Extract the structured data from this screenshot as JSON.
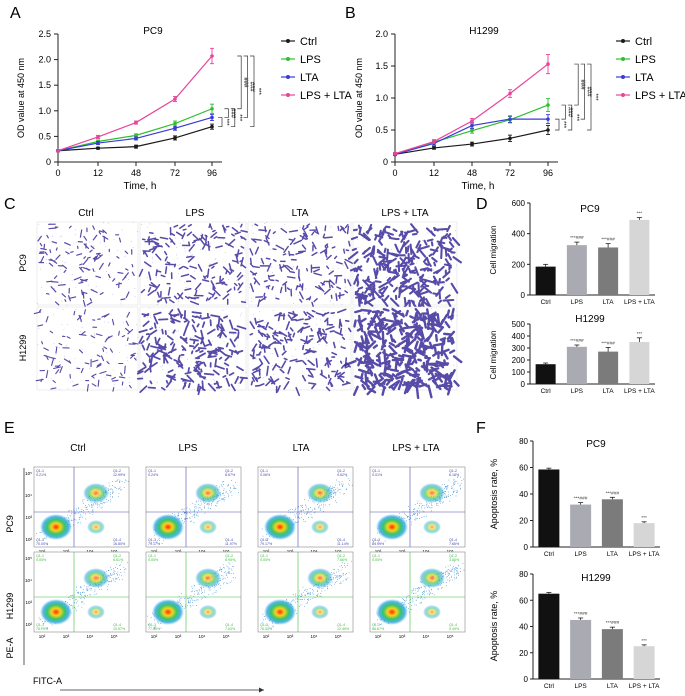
{
  "figure": {
    "panel_labels": [
      "A",
      "B",
      "C",
      "D",
      "E",
      "F"
    ],
    "significance_marks": {
      "triple": "***",
      "hash_triple": "###"
    }
  },
  "chart_data": [
    {
      "panel": "A",
      "type": "line",
      "title": "PC9",
      "xlabel": "Time, h",
      "ylabel": "OD value at 450 nm",
      "x": [
        0,
        12,
        48,
        72,
        96
      ],
      "xtick_labels": [
        "0",
        "12",
        "48",
        "72",
        "96"
      ],
      "ylim": [
        0,
        2.5
      ],
      "yticks": [
        0,
        0.5,
        1.0,
        1.5,
        2.0,
        2.5
      ],
      "ytick_labels": [
        "0",
        "0.5",
        "1.0",
        "1.5",
        "2.0",
        "2.5"
      ],
      "series": [
        {
          "name": "Ctrl",
          "color": "#1a1a1a",
          "values": [
            0.22,
            0.27,
            0.3,
            0.47,
            0.69
          ],
          "errors": [
            0.02,
            0.02,
            0.03,
            0.04,
            0.05
          ]
        },
        {
          "name": "LPS",
          "color": "#2fbf2f",
          "values": [
            0.22,
            0.4,
            0.52,
            0.75,
            1.04
          ],
          "errors": [
            0.02,
            0.03,
            0.03,
            0.05,
            0.09
          ]
        },
        {
          "name": "LTA",
          "color": "#3b3bd6",
          "values": [
            0.22,
            0.37,
            0.46,
            0.66,
            0.87
          ],
          "errors": [
            0.02,
            0.03,
            0.03,
            0.04,
            0.06
          ]
        },
        {
          "name": "LPS + LTA",
          "color": "#e8459a",
          "values": [
            0.22,
            0.49,
            0.77,
            1.23,
            2.07
          ],
          "errors": [
            0.02,
            0.03,
            0.03,
            0.05,
            0.15
          ]
        }
      ],
      "brackets": [
        {
          "label": "***",
          "from": "Ctrl",
          "to": "LTA"
        },
        {
          "label": "###",
          "from": "LTA",
          "to": "LPS"
        },
        {
          "label": "***",
          "from": "Ctrl",
          "to": "LPS"
        },
        {
          "label": "###",
          "from": "LPS",
          "to": "LPS + LTA"
        },
        {
          "label": "###",
          "from": "LTA",
          "to": "LPS + LTA"
        },
        {
          "label": "***",
          "from": "Ctrl",
          "to": "LPS + LTA"
        }
      ]
    },
    {
      "panel": "B",
      "type": "line",
      "title": "H1299",
      "xlabel": "Time, h",
      "ylabel": "OD value at 450 nm",
      "x": [
        0,
        12,
        48,
        72,
        96
      ],
      "xtick_labels": [
        "0",
        "12",
        "48",
        "72",
        "96"
      ],
      "ylim": [
        0,
        2.0
      ],
      "yticks": [
        0,
        0.5,
        1.0,
        1.5,
        2.0
      ],
      "ytick_labels": [
        "0",
        "0.5",
        "1.0",
        "1.5",
        "2.0"
      ],
      "series": [
        {
          "name": "Ctrl",
          "color": "#1a1a1a",
          "values": [
            0.12,
            0.22,
            0.28,
            0.37,
            0.5
          ],
          "errors": [
            0.02,
            0.02,
            0.03,
            0.05,
            0.07
          ]
        },
        {
          "name": "LPS",
          "color": "#2fbf2f",
          "values": [
            0.13,
            0.31,
            0.49,
            0.66,
            0.89
          ],
          "errors": [
            0.02,
            0.03,
            0.04,
            0.05,
            0.1
          ]
        },
        {
          "name": "LTA",
          "color": "#3b3bd6",
          "values": [
            0.12,
            0.29,
            0.57,
            0.67,
            0.67
          ],
          "errors": [
            0.02,
            0.03,
            0.05,
            0.05,
            0.07
          ]
        },
        {
          "name": "LPS + LTA",
          "color": "#e8459a",
          "values": [
            0.13,
            0.32,
            0.64,
            1.07,
            1.53
          ],
          "errors": [
            0.02,
            0.03,
            0.04,
            0.06,
            0.15
          ]
        }
      ],
      "brackets": [
        {
          "label": "***",
          "from": "Ctrl",
          "to": "LTA"
        },
        {
          "label": "###",
          "from": "LTA",
          "to": "LPS"
        },
        {
          "label": "***",
          "from": "Ctrl",
          "to": "LPS"
        },
        {
          "label": "###",
          "from": "LPS",
          "to": "LPS + LTA"
        },
        {
          "label": "###",
          "from": "LTA",
          "to": "LPS + LTA"
        },
        {
          "label": "***",
          "from": "Ctrl",
          "to": "LPS + LTA"
        }
      ]
    },
    {
      "panel": "D1",
      "type": "bar",
      "title": "PC9",
      "ylabel": "Cell migration",
      "categories": [
        "Ctrl",
        "LPS",
        "LTA",
        "LPS + LTA"
      ],
      "values": [
        185,
        325,
        310,
        490
      ],
      "errors": [
        15,
        20,
        25,
        15
      ],
      "colors": [
        "#111111",
        "#a9aab2",
        "#7b7b7b",
        "#d6d6d6"
      ],
      "annotations": [
        "",
        "***###",
        "***###",
        "***"
      ],
      "ylim": [
        0,
        600
      ],
      "yticks": [
        0,
        200,
        400,
        600
      ],
      "ytick_labels": [
        "0",
        "200",
        "400",
        "600"
      ]
    },
    {
      "panel": "D2",
      "type": "bar",
      "title": "H1299",
      "ylabel": "Cell migration",
      "categories": [
        "Ctrl",
        "LPS",
        "LTA",
        "LPS + LTA"
      ],
      "values": [
        165,
        310,
        270,
        350
      ],
      "errors": [
        10,
        15,
        35,
        35
      ],
      "colors": [
        "#111111",
        "#a9aab2",
        "#7b7b7b",
        "#d6d6d6"
      ],
      "annotations": [
        "",
        "***###",
        "***###",
        "***"
      ],
      "ylim": [
        0,
        500
      ],
      "yticks": [
        0,
        100,
        200,
        300,
        400,
        500
      ],
      "ytick_labels": [
        "0",
        "100",
        "200",
        "300",
        "400",
        "500"
      ]
    },
    {
      "panel": "F1",
      "type": "bar",
      "title": "PC9",
      "ylabel": "Apoptosis rate, %",
      "categories": [
        "Ctrl",
        "LPS",
        "LTA",
        "LPS + LTA"
      ],
      "values": [
        58.5,
        32,
        36,
        18
      ],
      "errors": [
        1,
        1.5,
        1.5,
        1
      ],
      "colors": [
        "#111111",
        "#a9aab2",
        "#7b7b7b",
        "#d6d6d6"
      ],
      "annotations": [
        "",
        "***###",
        "***###",
        "***"
      ],
      "ylim": [
        0,
        80
      ],
      "yticks": [
        0,
        20,
        40,
        60,
        80
      ],
      "ytick_labels": [
        "0",
        "20",
        "40",
        "60",
        "80"
      ]
    },
    {
      "panel": "F2",
      "type": "bar",
      "title": "H1299",
      "ylabel": "Apoptosis rate, %",
      "categories": [
        "Ctrl",
        "LPS",
        "LTA",
        "LPS + LTA"
      ],
      "values": [
        65,
        45,
        38,
        25
      ],
      "errors": [
        1,
        1.5,
        1.5,
        1
      ],
      "colors": [
        "#111111",
        "#a9aab2",
        "#7b7b7b",
        "#d6d6d6"
      ],
      "annotations": [
        "",
        "***###",
        "***###",
        "***"
      ],
      "ylim": [
        0,
        80
      ],
      "yticks": [
        0,
        20,
        40,
        60,
        80
      ],
      "ytick_labels": [
        "0",
        "20",
        "40",
        "60",
        "80"
      ]
    }
  ],
  "panel_c": {
    "columns": [
      "Ctrl",
      "LPS",
      "LTA",
      "LPS + LTA"
    ],
    "rows": [
      "PC9",
      "H1299"
    ],
    "density": [
      [
        0.25,
        0.45,
        0.4,
        0.8
      ],
      [
        0.2,
        0.6,
        0.5,
        1.0
      ]
    ],
    "stain_color": "#3a2c9a"
  },
  "panel_e": {
    "columns": [
      "Ctrl",
      "LPS",
      "LTA",
      "LPS + LTA"
    ],
    "rows": [
      "PC9",
      "H1299"
    ],
    "xlabel": "FITC-A",
    "ylabel": "PE-A",
    "tick_labels_x": [
      "10²",
      "10³",
      "10⁴",
      "10⁵"
    ],
    "tick_labels_y": [
      "10²",
      "10³",
      "10⁴",
      "10⁵"
    ],
    "gate_colors": {
      "PC9": "#4a4ab0",
      "H1299": "#3fbf3f"
    },
    "quadrants": [
      [
        {
          "Q1-1": "0.21%",
          "Q1-2": "12.99%",
          "Q1-3": "70.00%",
          "Q1-4": "16.80%"
        },
        {
          "Q1-1": "0.24%",
          "Q1-2": "8.67%",
          "Q1-3": "79.17%",
          "Q1-4": "11.97%"
        },
        {
          "Q1-1": "0.06%",
          "Q1-2": "9.62%",
          "Q1-3": "79.17%",
          "Q1-4": "11.14%"
        },
        {
          "Q1-1": "0.01%",
          "Q1-2": "6.18%",
          "Q1-3": "84.99%",
          "Q1-4": "7.66%"
        }
      ],
      [
        {
          "Q1-1": "0.05%",
          "Q1-2": "6.61%",
          "Q1-3": "78.79%",
          "Q1-4": "10.97%"
        },
        {
          "Q1-1": "0.05%",
          "Q1-2": "8.95%",
          "Q1-3": "77.66%",
          "Q1-4": "7.63%"
        },
        {
          "Q1-1": "0.05%",
          "Q1-2": "7.66%",
          "Q1-3": "76.30%",
          "Q1-4": "12.49%"
        },
        {
          "Q1-1": "0.05%",
          "Q1-2": "3.85%",
          "Q1-3": "86.67%",
          "Q1-4": "9.49%"
        }
      ]
    ]
  }
}
